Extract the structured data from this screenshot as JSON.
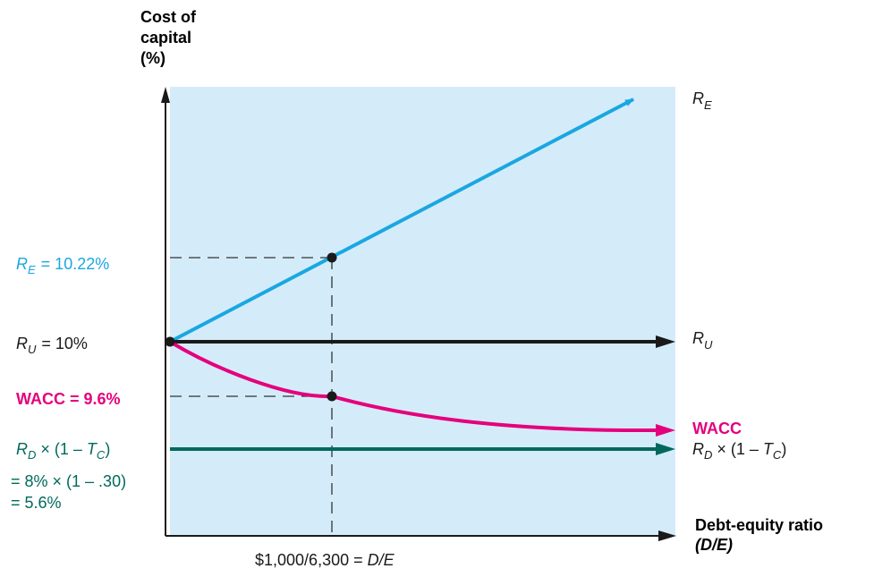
{
  "chart_data": {
    "type": "line",
    "y_axis_title": [
      "Cost of",
      "capital",
      "(%)"
    ],
    "x_axis_title": [
      "Debt-equity ratio",
      "(D/E)"
    ],
    "x_marker_label": "$1,000/6,300 = D/E",
    "x_marker_value": 0.1587,
    "grid": false,
    "series": [
      {
        "name": "R_E",
        "display": "RE",
        "color": "#1aa7e1",
        "points": [
          [
            0,
            10
          ],
          [
            0.1587,
            10.22
          ]
        ],
        "arrow": true
      },
      {
        "name": "R_U",
        "display": "RU",
        "color": "#1a1a1a",
        "points": [
          [
            0,
            10
          ]
        ],
        "arrow": true
      },
      {
        "name": "WACC",
        "display": "WACC",
        "color": "#e5007d",
        "points": [
          [
            0,
            10
          ],
          [
            0.1587,
            9.6
          ]
        ],
        "arrow": true
      },
      {
        "name": "R_D x (1 - T_C)",
        "display": "RD × (1 − TC)",
        "color": "#00695c",
        "points": [
          [
            0,
            5.6
          ]
        ],
        "arrow": true
      }
    ],
    "annotations": {
      "re_value": "= 10.22%",
      "ru_value": "= 10%",
      "wacc_value": "WACC = 9.6%",
      "rd_line2": "= 8% × (1 – .30)",
      "rd_line3": "= 5.6%"
    },
    "label_text": {
      "R": "R",
      "sub_E": "E",
      "sub_U": "U",
      "sub_D": "D",
      "sub_C": "C",
      "times_one_minus": " × (1 – ",
      "T": "T",
      "close_paren": ")",
      "wacc": "WACC",
      "marker_prefix": "$1,000/6,300 = ",
      "marker_suffix": "D/E"
    },
    "colors": {
      "plot_background": "#d4ecfa",
      "re": "#1aa7e1",
      "ru": "#1a1a1a",
      "wacc": "#e5007d",
      "rd": "#00695c",
      "dashed": "#333333"
    }
  }
}
